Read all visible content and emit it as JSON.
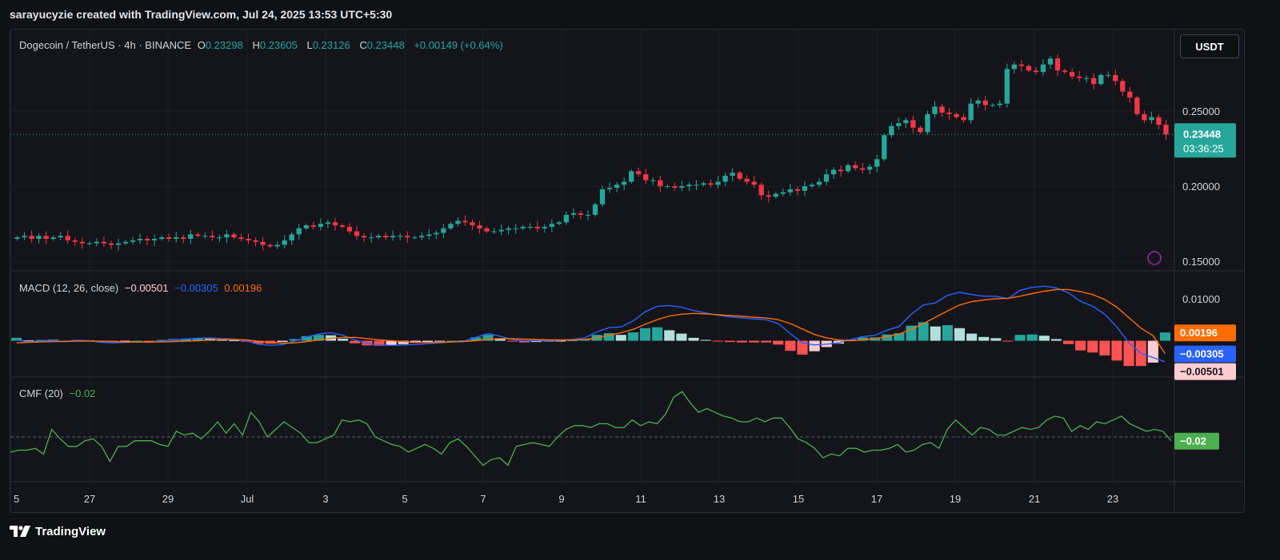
{
  "header": {
    "attribution": "sarayucyzie created with TradingView.com, Jul 24, 2025 13:53 UTC+5:30"
  },
  "symbol": {
    "name": "Dogecoin / TetherUS · 4h · BINANCE",
    "o_label": "O",
    "o": "0.23298",
    "h_label": "H",
    "h": "0.23605",
    "l_label": "L",
    "l": "0.23126",
    "c_label": "C",
    "c": "0.23448",
    "change": "+0.00149 (+0.64%)"
  },
  "currency_button": "USDT",
  "price_axis": {
    "ticks": [
      "0.25000",
      "0.20000",
      "0.15000"
    ],
    "current_price": "0.23448",
    "countdown": "03:36:25"
  },
  "macd": {
    "label": "MACD (12, 26, close)",
    "macd_value": "−0.00501",
    "signal_value": "−0.00305",
    "hist_value": "0.00196",
    "axis_tick": "0.01000",
    "badges": [
      "0.00196",
      "−0.00305",
      "−0.00501"
    ]
  },
  "cmf": {
    "label": "CMF (20)",
    "value": "−0.02",
    "badge": "−0.02"
  },
  "time_axis": {
    "labels": [
      "5",
      "27",
      "29",
      "Jul",
      "3",
      "5",
      "7",
      "9",
      "11",
      "13",
      "15",
      "17",
      "19",
      "21",
      "23"
    ]
  },
  "footer": {
    "brand": "TradingView"
  },
  "colors": {
    "up": "#26a69a",
    "down": "#f23645",
    "macd_line": "#2962ff",
    "signal_line": "#ff6d00",
    "cmf_line": "#4caf50",
    "hist_up_strong": "#26a69a",
    "hist_up_weak": "#b2dfdb",
    "hist_down_strong": "#ff5252",
    "hist_down_weak": "#ffcdd2"
  },
  "chart_data": [
    {
      "type": "candlestick",
      "title": "Dogecoin / TetherUS · 4h · BINANCE",
      "x_labels": [
        "5",
        "27",
        "29",
        "Jul",
        "3",
        "5",
        "7",
        "9",
        "11",
        "13",
        "15",
        "17",
        "19",
        "21",
        "23"
      ],
      "ylim": [
        0.148,
        0.3
      ],
      "y_ticks": [
        0.25,
        0.2,
        0.15
      ],
      "current": 0.23448,
      "closes": [
        0.166,
        0.167,
        0.165,
        0.167,
        0.165,
        0.166,
        0.167,
        0.164,
        0.163,
        0.162,
        0.162,
        0.163,
        0.162,
        0.161,
        0.162,
        0.163,
        0.164,
        0.165,
        0.164,
        0.165,
        0.166,
        0.165,
        0.166,
        0.165,
        0.168,
        0.167,
        0.167,
        0.166,
        0.166,
        0.168,
        0.166,
        0.165,
        0.164,
        0.163,
        0.161,
        0.16,
        0.161,
        0.164,
        0.168,
        0.172,
        0.174,
        0.173,
        0.175,
        0.176,
        0.174,
        0.173,
        0.17,
        0.167,
        0.166,
        0.166,
        0.167,
        0.166,
        0.167,
        0.167,
        0.166,
        0.166,
        0.167,
        0.168,
        0.169,
        0.172,
        0.175,
        0.177,
        0.176,
        0.174,
        0.172,
        0.17,
        0.17,
        0.171,
        0.172,
        0.172,
        0.173,
        0.173,
        0.172,
        0.173,
        0.175,
        0.176,
        0.181,
        0.182,
        0.181,
        0.181,
        0.188,
        0.198,
        0.199,
        0.201,
        0.203,
        0.21,
        0.208,
        0.204,
        0.204,
        0.2,
        0.2,
        0.199,
        0.2,
        0.201,
        0.201,
        0.202,
        0.201,
        0.203,
        0.207,
        0.209,
        0.205,
        0.203,
        0.201,
        0.194,
        0.193,
        0.195,
        0.196,
        0.198,
        0.197,
        0.2,
        0.201,
        0.203,
        0.208,
        0.211,
        0.21,
        0.214,
        0.212,
        0.211,
        0.213,
        0.218,
        0.234,
        0.24,
        0.242,
        0.244,
        0.239,
        0.236,
        0.248,
        0.253,
        0.249,
        0.248,
        0.246,
        0.244,
        0.255,
        0.257,
        0.254,
        0.254,
        0.255,
        0.278,
        0.281,
        0.28,
        0.277,
        0.276,
        0.281,
        0.285,
        0.277,
        0.276,
        0.273,
        0.272,
        0.272,
        0.268,
        0.274,
        0.274,
        0.27,
        0.263,
        0.259,
        0.248,
        0.244,
        0.246,
        0.241,
        0.23448
      ]
    },
    {
      "type": "line",
      "title": "MACD (12, 26, close)",
      "ylim": [
        -0.0075,
        0.0155
      ],
      "y_ticks": [
        0.01
      ],
      "series": [
        {
          "name": "MACD",
          "values": [
            0.0002,
            -0.0003,
            -0.0001,
            0.0001,
            -0.0002,
            0.0001,
            0.0,
            -0.0004,
            -0.0005,
            -0.0004,
            -0.0003,
            -0.0004,
            -0.0001,
            0.0002,
            0.0004,
            0.0006,
            0.0007,
            0.0005,
            0.0004,
            0.0,
            -0.0008,
            -0.0011,
            -0.0009,
            -0.0001,
            0.0009,
            0.0016,
            0.0019,
            0.0013,
            0.0002,
            -0.0006,
            -0.001,
            -0.0011,
            -0.001,
            -0.0009,
            -0.0007,
            -0.0005,
            -0.0003,
            -0.0001,
            0.0008,
            0.0017,
            0.0011,
            0.0003,
            0.0,
            0.0,
            0.0,
            0.0001,
            0.0003,
            0.0007,
            0.0021,
            0.0031,
            0.0033,
            0.0047,
            0.0069,
            0.0082,
            0.0084,
            0.008,
            0.0072,
            0.0066,
            0.0061,
            0.0057,
            0.0054,
            0.0052,
            0.005,
            0.0041,
            0.0017,
            -0.0005,
            -0.001,
            -0.0008,
            -0.0005,
            0.0003,
            0.001,
            0.0013,
            0.0025,
            0.0034,
            0.0063,
            0.0085,
            0.009,
            0.0108,
            0.0115,
            0.011,
            0.0106,
            0.0106,
            0.01,
            0.012,
            0.0127,
            0.013,
            0.0126,
            0.0114,
            0.0094,
            0.0082,
            0.0063,
            0.0033,
            -0.0005,
            -0.003,
            -0.004,
            -0.00501
          ]
        },
        {
          "name": "Signal",
          "values": [
            -0.0005,
            -0.0004,
            -0.0003,
            -0.0002,
            -0.0002,
            -0.0001,
            -0.0001,
            -0.0001,
            -0.0002,
            -0.0003,
            -0.0003,
            -0.0003,
            -0.0003,
            -0.0002,
            -0.0001,
            0.0,
            0.0002,
            0.0003,
            0.0003,
            0.0002,
            -0.0001,
            -0.0004,
            -0.0006,
            -0.0005,
            -0.0002,
            0.0002,
            0.0006,
            0.0008,
            0.0008,
            0.0005,
            0.0002,
            0.0,
            -0.0002,
            -0.0004,
            -0.0004,
            -0.0004,
            -0.0003,
            -0.0002,
            0.0,
            0.0003,
            0.0005,
            0.0005,
            0.0004,
            0.0003,
            0.0002,
            0.0002,
            0.0002,
            0.0003,
            0.0007,
            0.0013,
            0.0019,
            0.0027,
            0.0039,
            0.005,
            0.0059,
            0.0063,
            0.0065,
            0.0064,
            0.0062,
            0.006,
            0.0058,
            0.0056,
            0.0054,
            0.005,
            0.0041,
            0.0028,
            0.0015,
            0.0007,
            0.0002,
            0.0,
            0.0002,
            0.0005,
            0.001,
            0.0016,
            0.0027,
            0.0041,
            0.0056,
            0.0071,
            0.0085,
            0.0093,
            0.0097,
            0.01,
            0.0101,
            0.0106,
            0.0112,
            0.0118,
            0.0122,
            0.0122,
            0.0117,
            0.011,
            0.0098,
            0.008,
            0.0055,
            0.003,
            0.0012,
            -0.00305
          ]
        }
      ],
      "histogram": [
        0.0007,
        0.0001,
        0.0002,
        0.0003,
        0.0,
        0.0002,
        0.0001,
        -0.0003,
        -0.0003,
        -0.0001,
        0.0,
        -0.0001,
        0.0002,
        0.0004,
        0.0005,
        0.0006,
        0.0005,
        0.0002,
        0.0001,
        -0.0002,
        -0.0007,
        -0.0007,
        -0.0003,
        0.0004,
        0.0011,
        0.0014,
        0.0013,
        0.0005,
        -0.0006,
        -0.0011,
        -0.0012,
        -0.0011,
        -0.0008,
        -0.0005,
        -0.0003,
        -0.0001,
        0.0,
        0.0001,
        0.0008,
        0.0014,
        0.0006,
        -0.0002,
        -0.0004,
        -0.0003,
        -0.0002,
        -0.0001,
        0.0001,
        0.0004,
        0.0014,
        0.0018,
        0.0014,
        0.002,
        0.003,
        0.0032,
        0.0025,
        0.0017,
        0.0007,
        0.0002,
        -0.0001,
        -0.0003,
        -0.0004,
        -0.0004,
        -0.0004,
        -0.0009,
        -0.0024,
        -0.0033,
        -0.0025,
        -0.0015,
        -0.0007,
        0.0003,
        0.0008,
        0.0008,
        0.0015,
        0.0018,
        0.0036,
        0.0044,
        0.0034,
        0.0037,
        0.003,
        0.0017,
        0.0009,
        0.0006,
        -0.0001,
        0.0014,
        0.0015,
        0.0012,
        0.0004,
        -0.0008,
        -0.0023,
        -0.0028,
        -0.0035,
        -0.0047,
        -0.006,
        -0.006,
        -0.0052,
        0.00196
      ]
    },
    {
      "type": "line",
      "title": "CMF (20)",
      "ylim": [
        -0.22,
        0.3
      ],
      "zero_line": 0,
      "values": [
        -0.08,
        -0.07,
        -0.07,
        -0.06,
        -0.09,
        0.04,
        -0.01,
        -0.05,
        -0.05,
        -0.02,
        -0.01,
        -0.05,
        -0.13,
        -0.05,
        -0.05,
        -0.02,
        -0.02,
        -0.02,
        -0.04,
        -0.05,
        0.03,
        0.01,
        0.02,
        -0.01,
        0.03,
        0.08,
        0.02,
        0.07,
        0.01,
        0.13,
        0.08,
        0.0,
        0.04,
        0.08,
        0.05,
        0.02,
        -0.03,
        -0.03,
        -0.01,
        0.01,
        0.09,
        0.08,
        0.09,
        0.07,
        0.0,
        -0.02,
        -0.04,
        -0.05,
        -0.08,
        -0.06,
        -0.04,
        -0.06,
        -0.09,
        -0.03,
        -0.01,
        -0.05,
        -0.1,
        -0.15,
        -0.12,
        -0.11,
        -0.15,
        -0.05,
        -0.04,
        -0.03,
        -0.04,
        -0.05,
        0.0,
        0.04,
        0.06,
        0.06,
        0.05,
        0.07,
        0.07,
        0.05,
        0.05,
        0.09,
        0.06,
        0.08,
        0.07,
        0.12,
        0.21,
        0.24,
        0.18,
        0.13,
        0.15,
        0.13,
        0.11,
        0.1,
        0.08,
        0.08,
        0.1,
        0.08,
        0.1,
        0.1,
        0.05,
        -0.01,
        -0.03,
        -0.06,
        -0.11,
        -0.09,
        -0.1,
        -0.06,
        -0.06,
        -0.08,
        -0.07,
        -0.07,
        -0.06,
        -0.04,
        -0.08,
        -0.07,
        -0.04,
        -0.03,
        -0.06,
        0.04,
        0.09,
        0.05,
        0.01,
        0.05,
        0.04,
        0.01,
        0.01,
        0.03,
        0.05,
        0.04,
        0.05,
        0.09,
        0.11,
        0.1,
        0.03,
        0.06,
        0.04,
        0.08,
        0.07,
        0.09,
        0.11,
        0.07,
        0.05,
        0.03,
        0.04,
        0.03,
        -0.02
      ]
    }
  ]
}
